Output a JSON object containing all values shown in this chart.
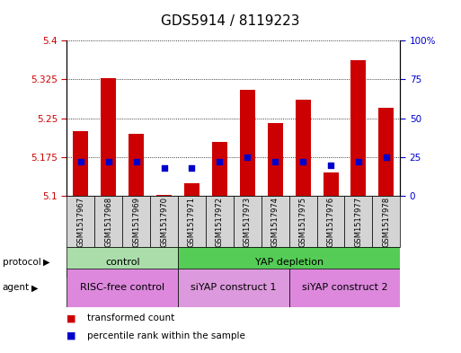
{
  "title": "GDS5914 / 8119223",
  "samples": [
    "GSM1517967",
    "GSM1517968",
    "GSM1517969",
    "GSM1517970",
    "GSM1517971",
    "GSM1517972",
    "GSM1517973",
    "GSM1517974",
    "GSM1517975",
    "GSM1517976",
    "GSM1517977",
    "GSM1517978"
  ],
  "bar_values": [
    5.225,
    5.327,
    5.22,
    5.102,
    5.125,
    5.205,
    5.305,
    5.24,
    5.285,
    5.145,
    5.362,
    5.27
  ],
  "bar_base": 5.1,
  "percentile_values": [
    22,
    22,
    22,
    18,
    18,
    22,
    25,
    22,
    22,
    20,
    22,
    25
  ],
  "ylim": [
    5.1,
    5.4
  ],
  "y2lim": [
    0,
    100
  ],
  "yticks": [
    5.1,
    5.175,
    5.25,
    5.325,
    5.4
  ],
  "y2ticks": [
    0,
    25,
    50,
    75,
    100
  ],
  "ytick_labels": [
    "5.1",
    "5.175",
    "5.25",
    "5.325",
    "5.4"
  ],
  "y2tick_labels": [
    "0",
    "25",
    "50",
    "75",
    "100%"
  ],
  "bar_color": "#cc0000",
  "dot_color": "#0000cc",
  "bg_color": "#d4d4d4",
  "plot_bg": "#ffffff",
  "protocol_groups": [
    {
      "label": "control",
      "start": 0,
      "end": 3,
      "color": "#aaddaa"
    },
    {
      "label": "YAP depletion",
      "start": 4,
      "end": 11,
      "color": "#55cc55"
    }
  ],
  "agent_groups": [
    {
      "label": "RISC-free control",
      "start": 0,
      "end": 3,
      "color": "#dd88dd"
    },
    {
      "label": "siYAP construct 1",
      "start": 4,
      "end": 7,
      "color": "#dd99dd"
    },
    {
      "label": "siYAP construct 2",
      "start": 8,
      "end": 11,
      "color": "#dd88dd"
    }
  ],
  "legend_items": [
    {
      "label": "transformed count",
      "color": "#cc0000"
    },
    {
      "label": "percentile rank within the sample",
      "color": "#0000cc"
    }
  ],
  "grid_color": "#000000",
  "title_fontsize": 11,
  "tick_fontsize": 7.5,
  "label_fontsize": 8
}
